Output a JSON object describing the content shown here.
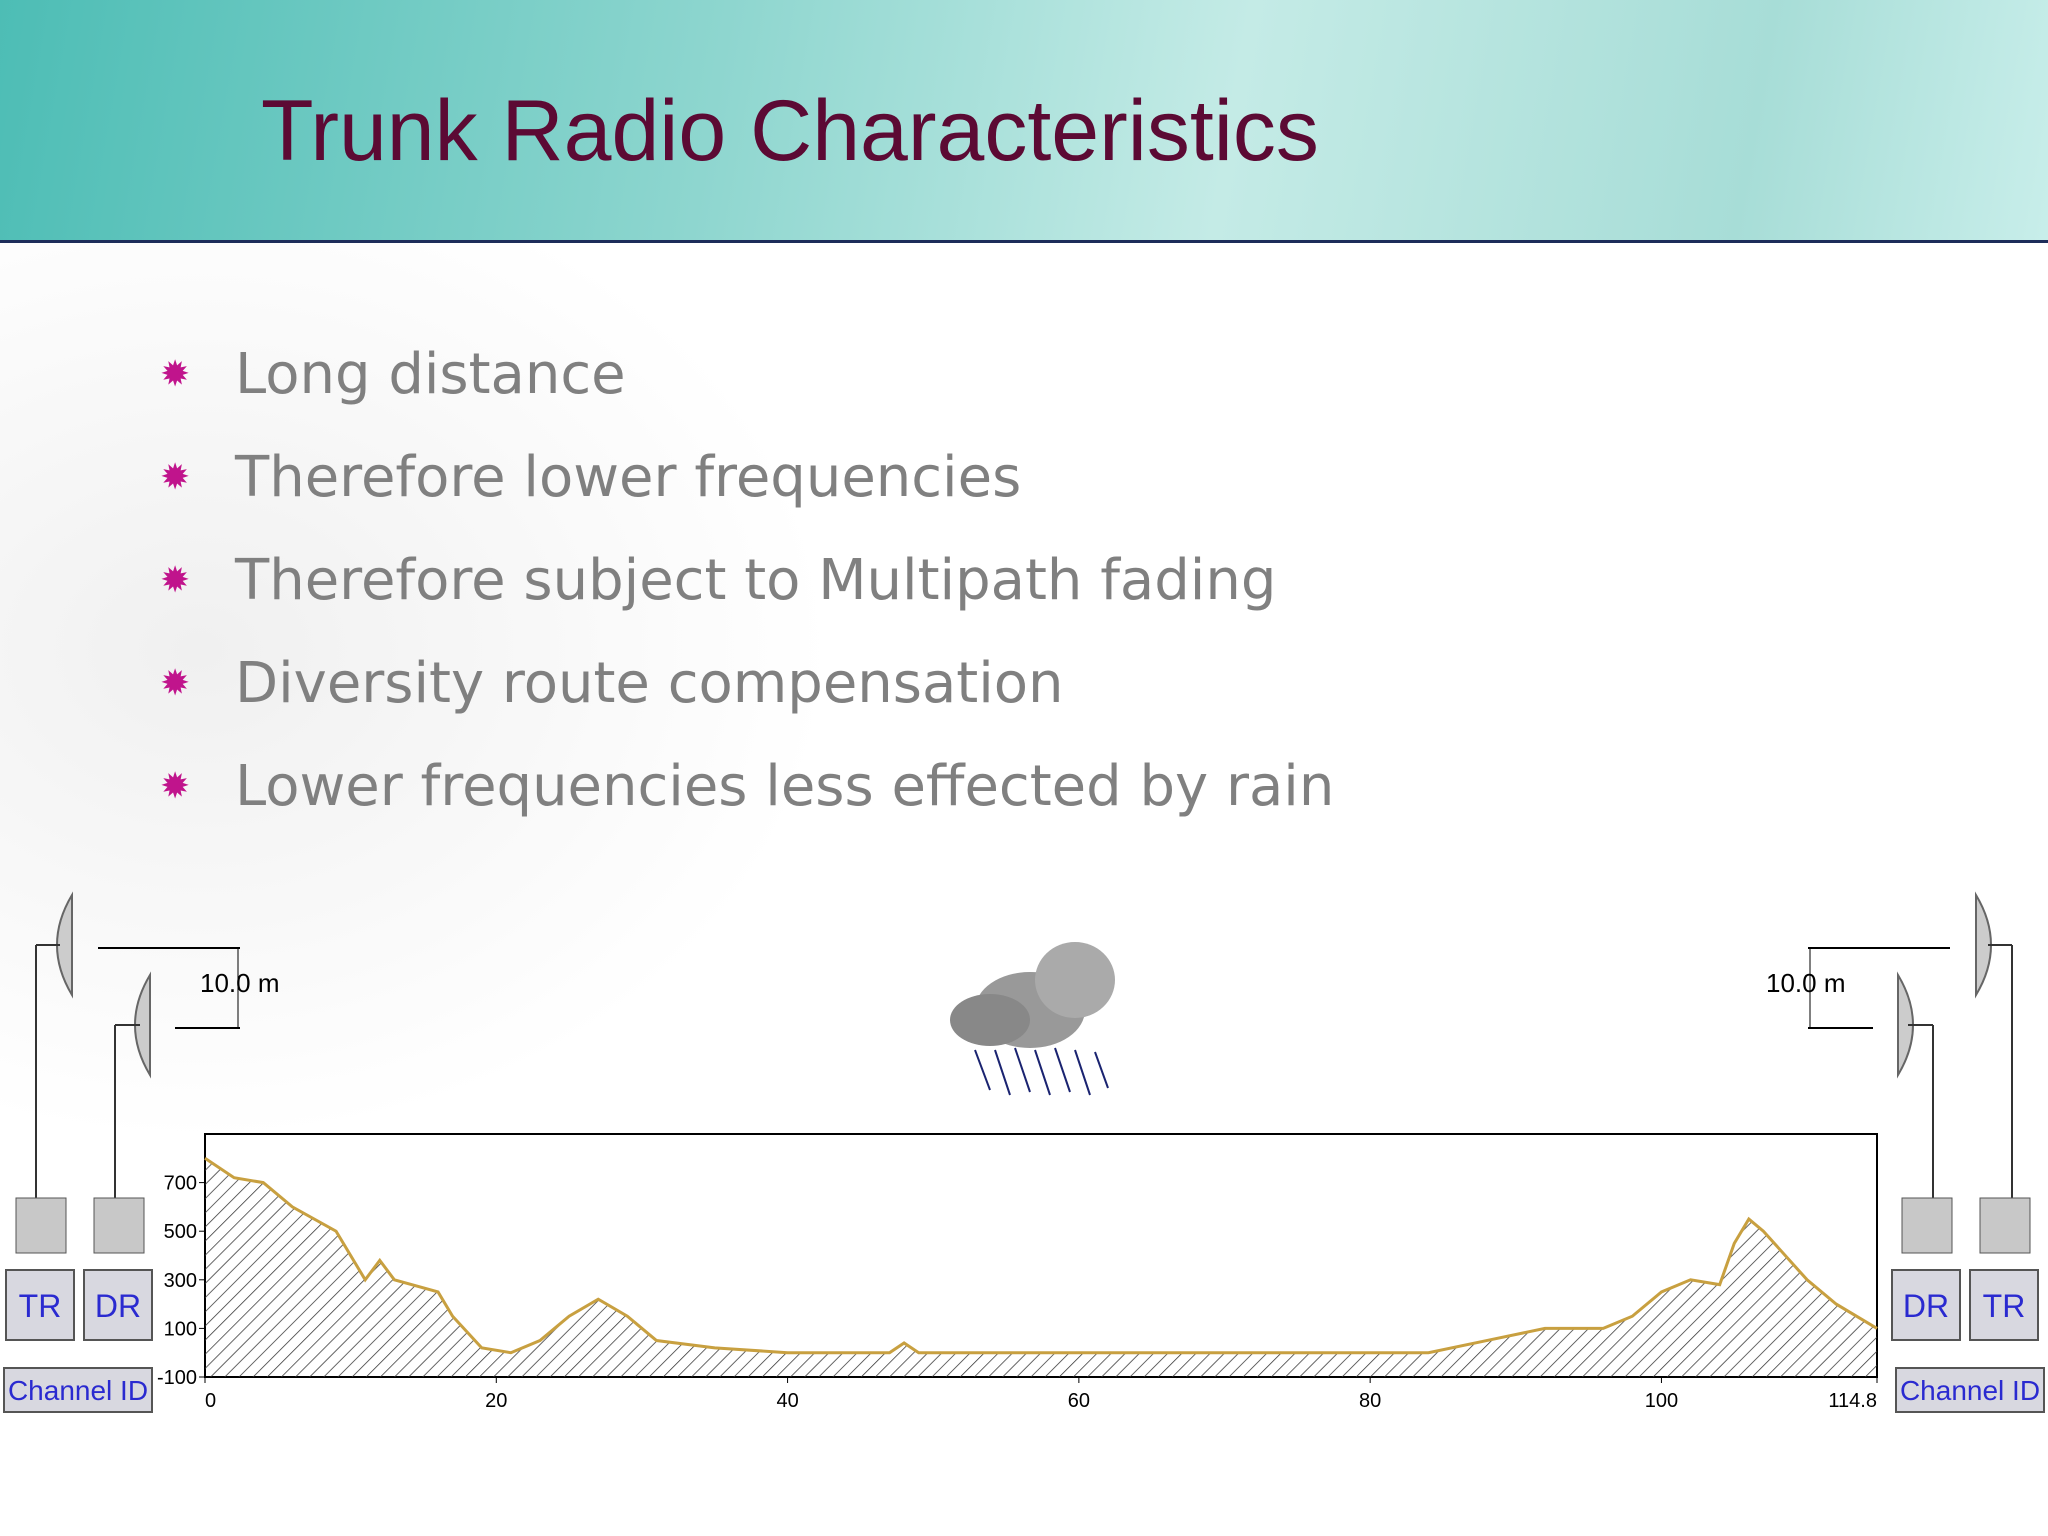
{
  "header": {
    "title": "Trunk Radio Characteristics"
  },
  "bullets": [
    "Long distance",
    "Therefore lower frequencies",
    "Therefore subject to Multipath fading",
    "Diversity route compensation",
    "Lower frequencies less effected by rain"
  ],
  "profile": {
    "x": [
      0,
      2,
      4,
      6,
      9,
      11,
      12,
      13,
      16,
      17,
      19,
      21,
      23,
      25,
      27,
      29,
      31,
      35,
      40,
      47,
      48,
      49,
      60,
      70,
      84,
      88,
      92,
      96,
      98,
      100,
      102,
      104,
      105,
      106,
      107,
      110,
      112,
      114.8
    ],
    "elevation": [
      800,
      720,
      700,
      600,
      500,
      300,
      380,
      300,
      250,
      150,
      20,
      0,
      50,
      150,
      220,
      150,
      50,
      20,
      0,
      0,
      40,
      0,
      0,
      0,
      0,
      50,
      100,
      100,
      150,
      250,
      300,
      280,
      450,
      550,
      500,
      300,
      200,
      100
    ],
    "xlim": [
      0,
      114.8
    ],
    "ylim": [
      -100,
      900
    ],
    "xticks": [
      0,
      20,
      40,
      60,
      80,
      100,
      114.8
    ],
    "yticks": [
      -100,
      100,
      300,
      500,
      700
    ]
  },
  "left_station": {
    "height_label": "10.0 m",
    "units": [
      "TR",
      "DR"
    ],
    "channel": "Channel ID"
  },
  "right_station": {
    "height_label": "10.0 m",
    "units": [
      "DR",
      "TR"
    ],
    "channel": "Channel ID"
  }
}
